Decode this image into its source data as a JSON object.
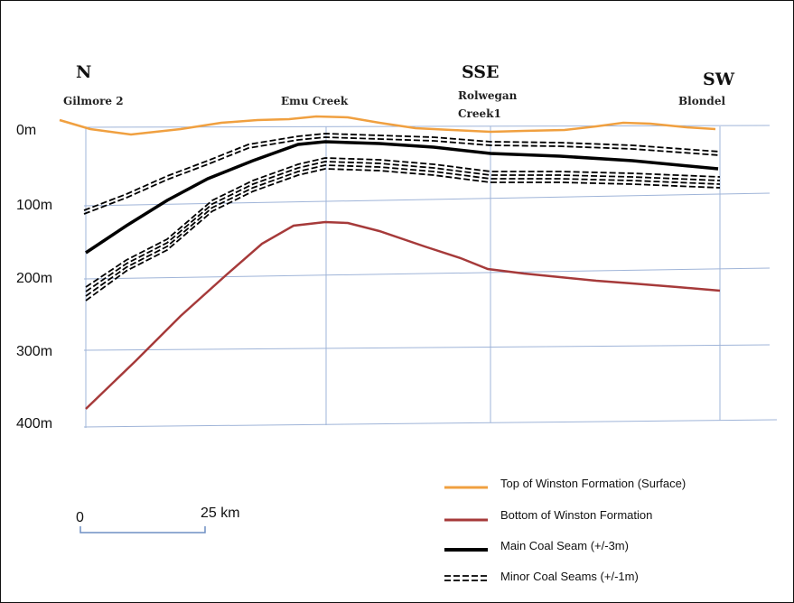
{
  "directions": [
    "N",
    "SSE",
    "SW"
  ],
  "wells": [
    "Gilmore 2",
    "Emu Creek",
    "Rolwegan",
    "Creek1",
    "Blondel"
  ],
  "depth_labels": [
    "0m",
    "100m",
    "200m",
    "300m",
    "400m"
  ],
  "scale_bar": {
    "start": "0",
    "end": "25 km"
  },
  "legend": [
    {
      "label": "Top of Winston Formation (Surface)",
      "color": "#f0a040",
      "style": "solid"
    },
    {
      "label": "Bottom of Winston Formation",
      "color": "#a63a3a",
      "style": "solid"
    },
    {
      "label": "Main Coal Seam  (+/-3m)",
      "color": "#000000",
      "style": "solid-thick"
    },
    {
      "label": "Minor Coal Seams (+/-1m)",
      "color": "#000000",
      "style": "dashed"
    }
  ],
  "colors": {
    "grid": "#9fb4d8",
    "surface": "#f0a040",
    "bottom": "#a63a3a",
    "coal": "#000000"
  }
}
